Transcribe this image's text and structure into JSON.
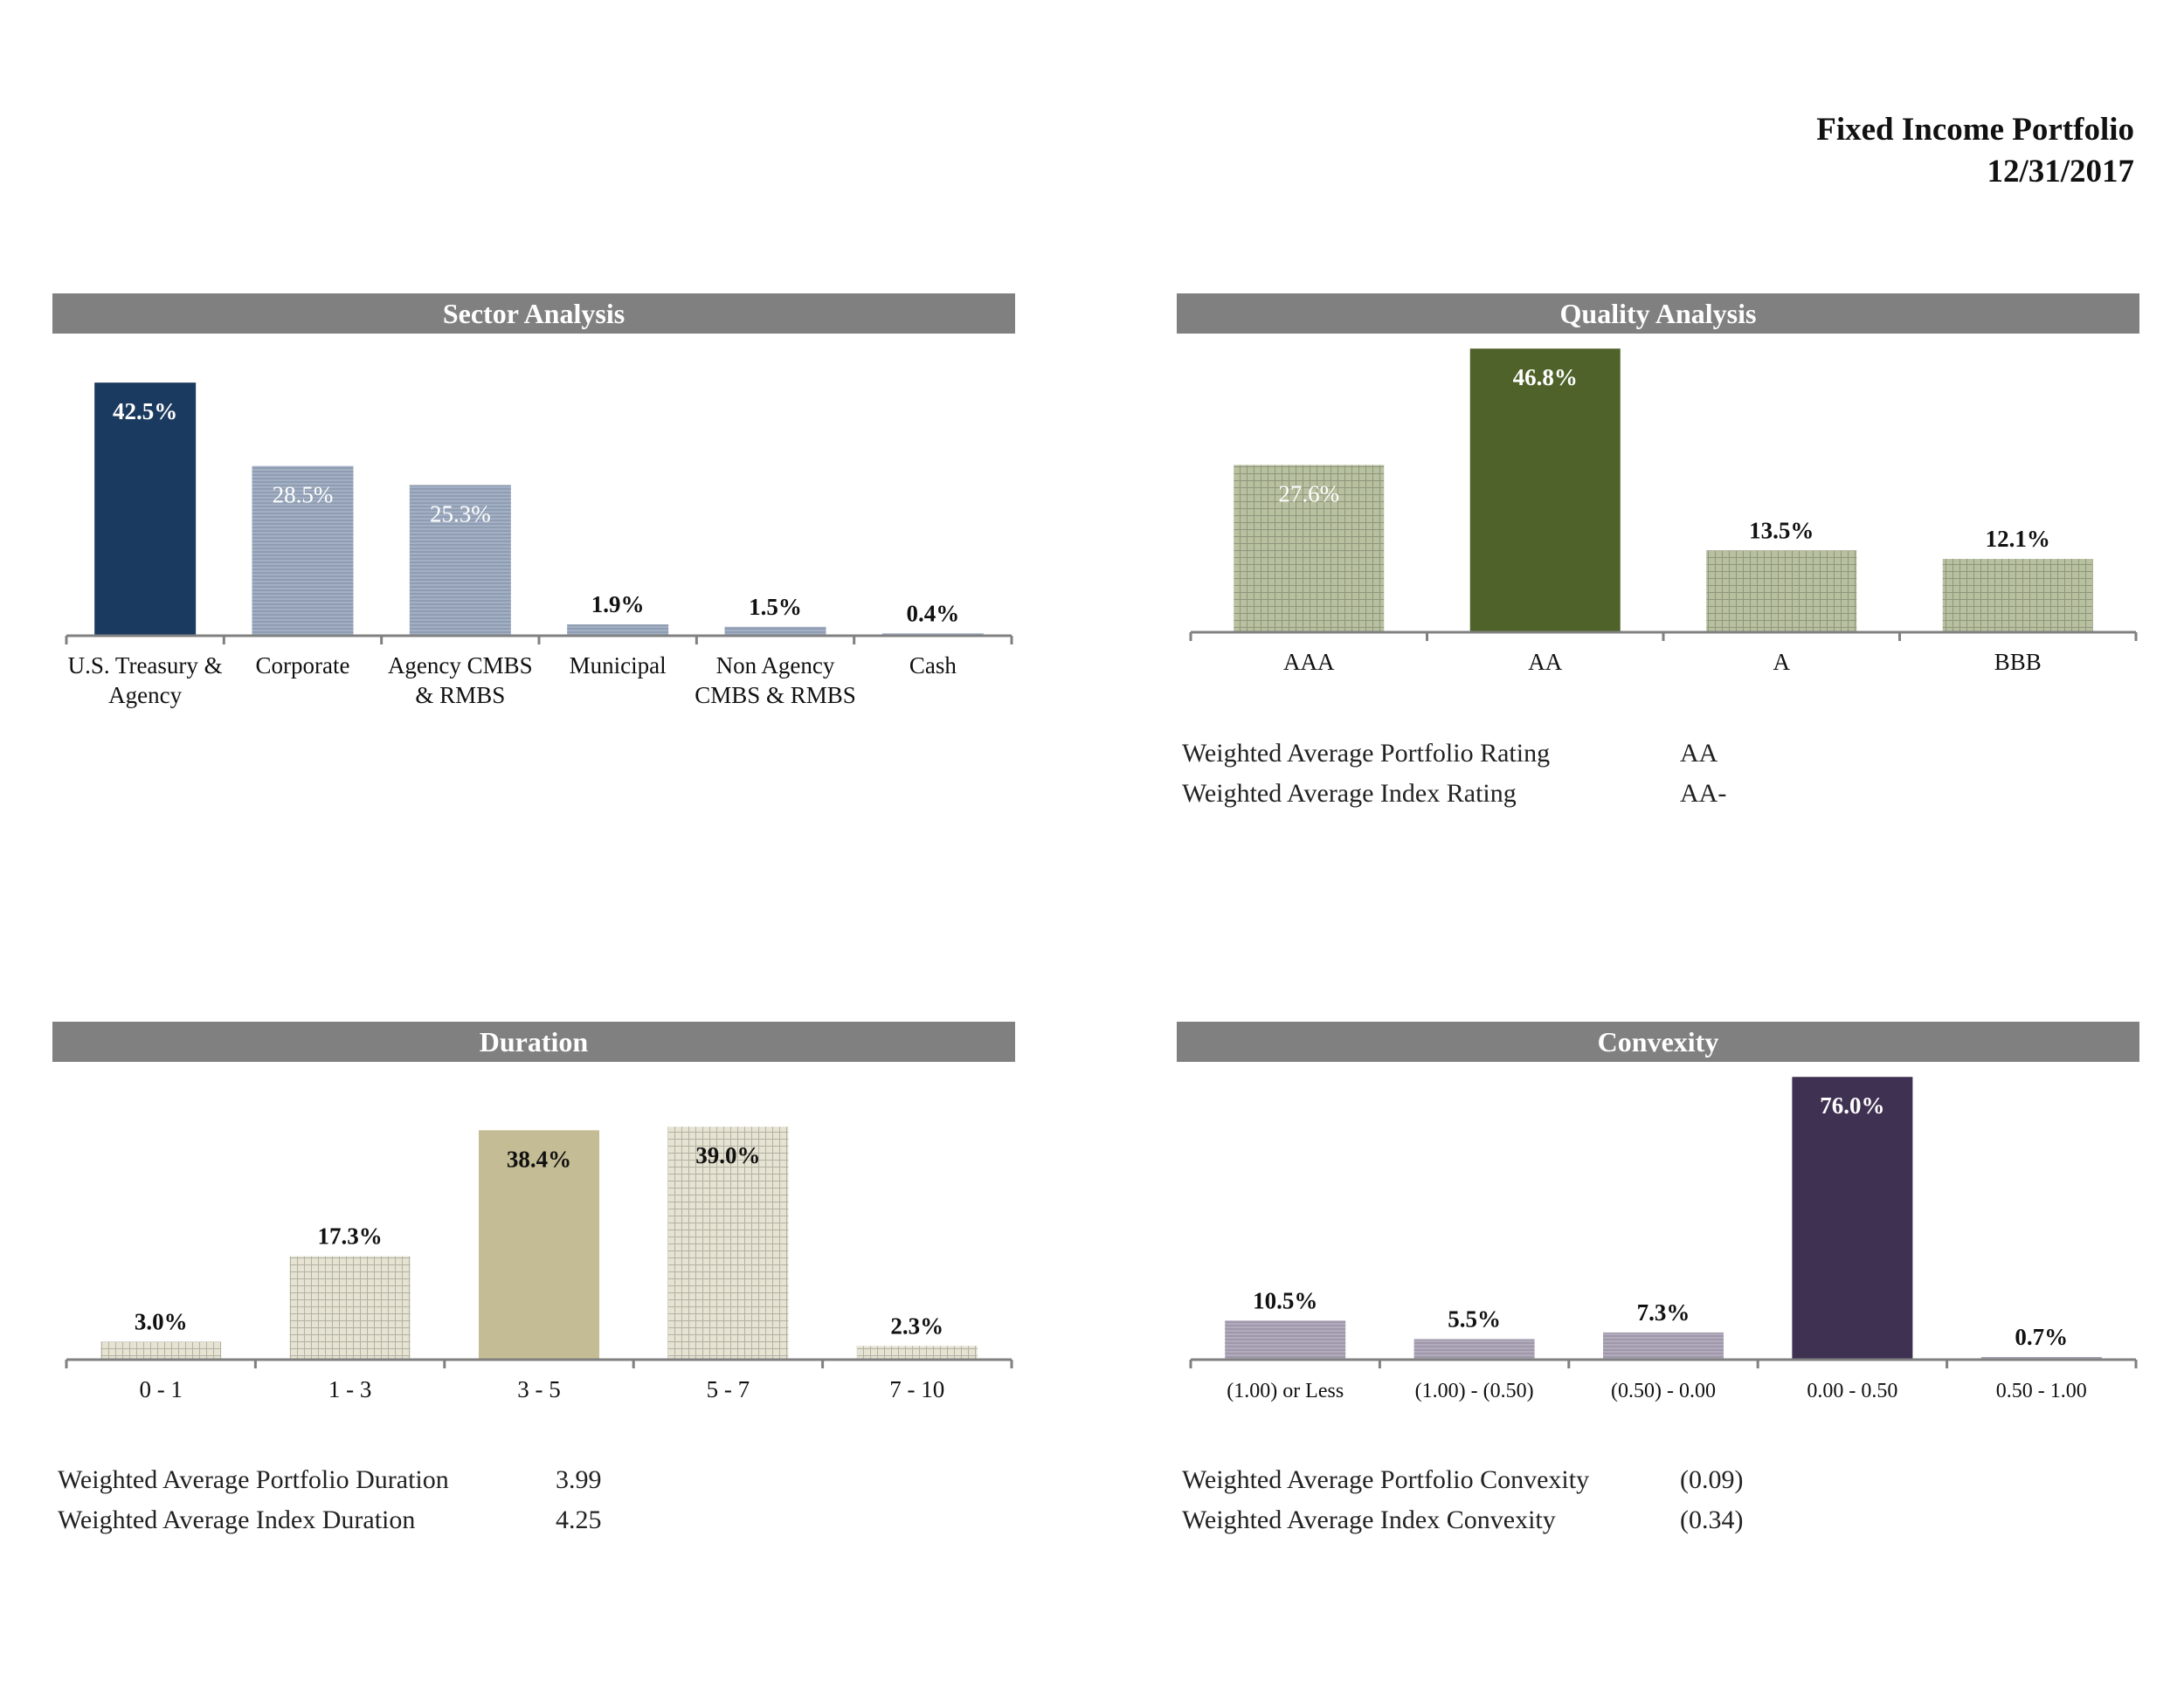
{
  "report": {
    "title": "Fixed Income Portfolio",
    "date": "12/31/2017"
  },
  "colors": {
    "header_bg": "#808080",
    "axis": "#808080",
    "sector_solid": "#1b3a5f",
    "sector_light": "#a2b0c6",
    "quality_solid": "#4f6229",
    "quality_light": "#b7c09f",
    "duration_solid": "#c4bc94",
    "duration_light": "#e6e3d2",
    "convexity_solid": "#3f3151",
    "convexity_light": "#b2abbe"
  },
  "panels": {
    "sector": {
      "header": "Sector Analysis",
      "chart_data": {
        "type": "bar",
        "title": "Sector Analysis",
        "categories": [
          [
            "U.S. Treasury &",
            "Agency"
          ],
          [
            "Corporate"
          ],
          [
            "Agency CMBS",
            "& RMBS"
          ],
          [
            "Municipal"
          ],
          [
            "Non Agency",
            "CMBS & RMBS"
          ],
          [
            "Cash"
          ]
        ],
        "values": [
          42.5,
          28.5,
          25.3,
          1.9,
          1.5,
          0.4
        ],
        "data_labels": [
          "42.5%",
          "28.5%",
          "25.3%",
          "1.9%",
          "1.5%",
          "0.4%"
        ],
        "highlight_index": 0,
        "ylim": [
          0,
          50
        ],
        "grid": false,
        "legend": "none"
      }
    },
    "quality": {
      "header": "Quality Analysis",
      "chart_data": {
        "type": "bar",
        "title": "Quality Analysis",
        "categories": [
          [
            "AAA"
          ],
          [
            "AA"
          ],
          [
            "A"
          ],
          [
            "BBB"
          ]
        ],
        "values": [
          27.6,
          46.8,
          13.5,
          12.1
        ],
        "data_labels": [
          "27.6%",
          "46.8%",
          "13.5%",
          "12.1%"
        ],
        "highlight_index": 1,
        "ylim": [
          0,
          50
        ],
        "grid": false,
        "legend": "none"
      },
      "stats": [
        {
          "label": "Weighted Average Portfolio Rating",
          "value": "AA"
        },
        {
          "label": "Weighted Average Index Rating",
          "value": "AA-"
        }
      ]
    },
    "duration": {
      "header": "Duration",
      "chart_data": {
        "type": "bar",
        "title": "Duration",
        "categories": [
          [
            "0 - 1"
          ],
          [
            "1 - 3"
          ],
          [
            "3 - 5"
          ],
          [
            "5 - 7"
          ],
          [
            "7 - 10"
          ]
        ],
        "values": [
          3.0,
          17.3,
          38.4,
          39.0,
          2.3
        ],
        "data_labels": [
          "3.0%",
          "17.3%",
          "38.4%",
          "39.0%",
          "2.3%"
        ],
        "highlight_index": 2,
        "ylim": [
          0,
          40
        ],
        "grid": false,
        "legend": "none"
      },
      "stats": [
        {
          "label": "Weighted Average Portfolio Duration",
          "value": "3.99"
        },
        {
          "label": "Weighted Average Index Duration",
          "value": "4.25"
        }
      ]
    },
    "convexity": {
      "header": "Convexity",
      "chart_data": {
        "type": "bar",
        "title": "Convexity",
        "categories": [
          [
            "(1.00) or Less"
          ],
          [
            "(1.00) - (0.50)"
          ],
          [
            "(0.50) - 0.00"
          ],
          [
            "0.00 - 0.50"
          ],
          [
            "0.50 - 1.00"
          ]
        ],
        "values": [
          10.5,
          5.5,
          7.3,
          76.0,
          0.7
        ],
        "data_labels": [
          "10.5%",
          "5.5%",
          "7.3%",
          "76.0%",
          "0.7%"
        ],
        "highlight_index": 3,
        "ylim": [
          0,
          80
        ],
        "grid": false,
        "legend": "none"
      },
      "stats": [
        {
          "label": "Weighted Average Portfolio Convexity",
          "value": "(0.09)"
        },
        {
          "label": "Weighted Average Index Convexity",
          "value": "(0.34)"
        }
      ]
    }
  }
}
